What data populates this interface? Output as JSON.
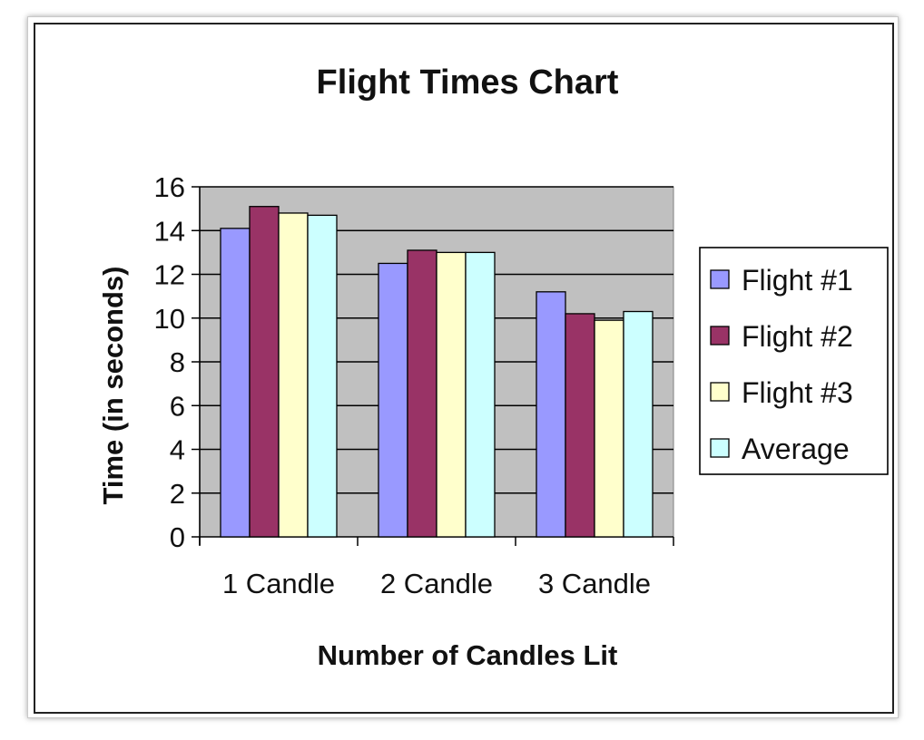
{
  "chart_data": {
    "type": "bar",
    "title": "Flight Times Chart",
    "xlabel": "Number of Candles Lit",
    "ylabel": "Time (in seconds)",
    "categories": [
      "1 Candle",
      "2 Candle",
      "3 Candle"
    ],
    "ylim": [
      0,
      16
    ],
    "yticks": [
      0,
      2,
      4,
      6,
      8,
      10,
      12,
      14,
      16
    ],
    "grid": true,
    "legend_position": "right",
    "plot_background": "#c0c0c0",
    "series": [
      {
        "name": "Flight #1",
        "color": "#9999ff",
        "values": [
          14.1,
          12.5,
          11.2
        ]
      },
      {
        "name": "Flight #2",
        "color": "#993366",
        "values": [
          15.1,
          13.1,
          10.2
        ]
      },
      {
        "name": "Flight #3",
        "color": "#ffffcc",
        "values": [
          14.8,
          13.0,
          9.9
        ]
      },
      {
        "name": "Average",
        "color": "#ccffff",
        "values": [
          14.7,
          13.0,
          10.3
        ]
      }
    ]
  }
}
